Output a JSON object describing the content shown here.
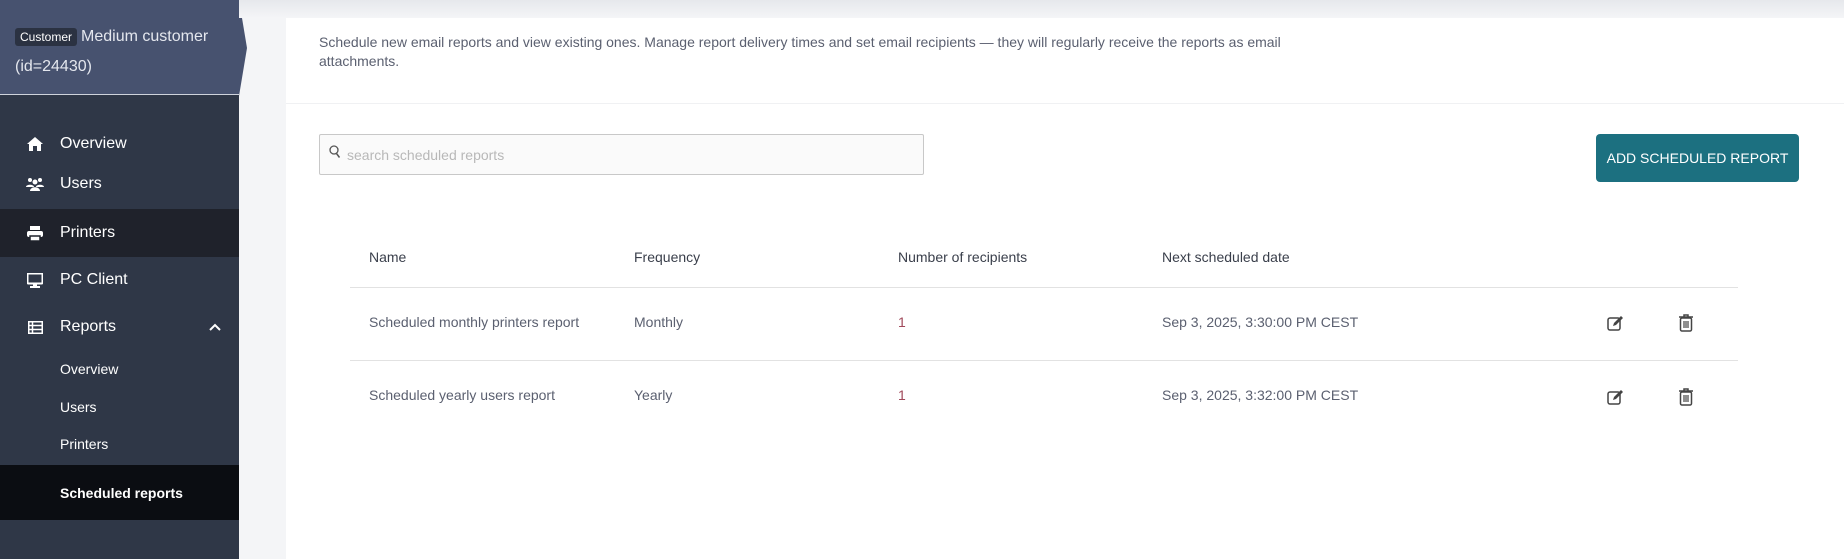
{
  "customer": {
    "badge": "Customer",
    "name": "Medium customer",
    "id": "(id=24430)"
  },
  "nav": [
    {
      "label": "Overview",
      "icon": "home-icon"
    },
    {
      "label": "Users",
      "icon": "users-icon"
    },
    {
      "label": "Printers",
      "icon": "printer-icon",
      "active": true
    },
    {
      "label": "PC Client",
      "icon": "monitor-icon"
    },
    {
      "label": "Reports",
      "icon": "list-icon",
      "expanded": true
    }
  ],
  "reports_sub": [
    {
      "label": "Overview"
    },
    {
      "label": "Users"
    },
    {
      "label": "Printers"
    },
    {
      "label": "Scheduled reports",
      "active": true
    }
  ],
  "description": "Schedule new email reports and view existing ones. Manage report delivery times and set email recipients — they will regularly receive the reports as email attachments.",
  "search": {
    "placeholder": "search scheduled reports",
    "value": ""
  },
  "add_button": "ADD SCHEDULED REPORT",
  "table": {
    "headers": [
      "Name",
      "Frequency",
      "Number of recipients",
      "Next scheduled date"
    ],
    "rows": [
      [
        "Scheduled monthly printers report",
        "Monthly",
        "1",
        "Sep 3, 2025, 3:30:00 PM CEST"
      ],
      [
        "Scheduled yearly users report",
        "Yearly",
        "1",
        "Sep 3, 2025, 3:32:00 PM CEST"
      ]
    ]
  },
  "colors": {
    "sidebar": "#2f3747",
    "customer_header": "#47526f",
    "accent": "#1c7080"
  }
}
